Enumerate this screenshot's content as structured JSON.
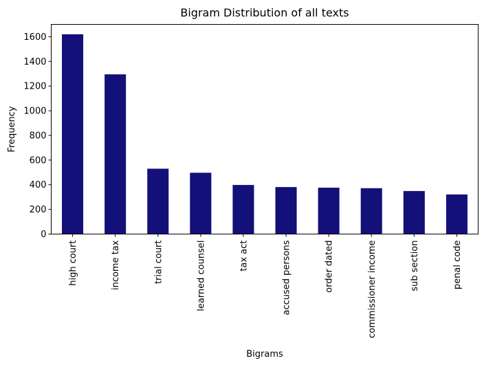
{
  "colors": {
    "bar": "#13107a",
    "axis": "#000000",
    "background": "#ffffff"
  },
  "chart_data": {
    "type": "bar",
    "title": "Bigram Distribution of all texts",
    "xlabel": "Bigrams",
    "ylabel": "Frequency",
    "ylim": [
      0,
      1700
    ],
    "yticks": [
      0,
      200,
      400,
      600,
      800,
      1000,
      1200,
      1400,
      1600
    ],
    "grid": false,
    "legend": false,
    "categories": [
      "high court",
      "income tax",
      "trial court",
      "learned counsel",
      "tax act",
      "accused persons",
      "order dated",
      "commissioner income",
      "sub section",
      "penal code"
    ],
    "values": [
      1620,
      1295,
      530,
      497,
      398,
      381,
      376,
      372,
      349,
      321
    ]
  }
}
